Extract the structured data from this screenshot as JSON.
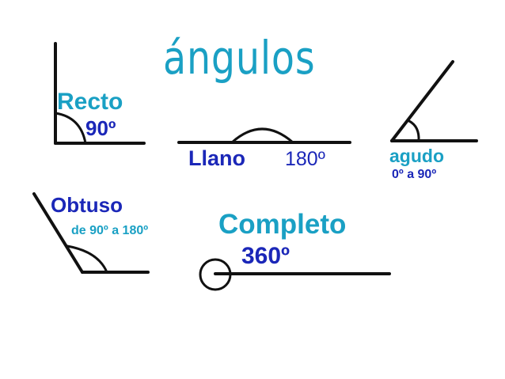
{
  "title": "ángulos",
  "colors": {
    "teal": "#1aa0c4",
    "navy": "#1b27b8",
    "stroke": "#111111"
  },
  "angles": {
    "recto": {
      "name": "Recto",
      "measure": "90º"
    },
    "llano": {
      "name": "Llano",
      "measure": "180º"
    },
    "agudo": {
      "name": "agudo",
      "range": "0º a 90º"
    },
    "obtuso": {
      "name": "Obtuso",
      "range": "de 90º a 180º"
    },
    "completo": {
      "name": "Completo",
      "measure": "360º"
    }
  }
}
